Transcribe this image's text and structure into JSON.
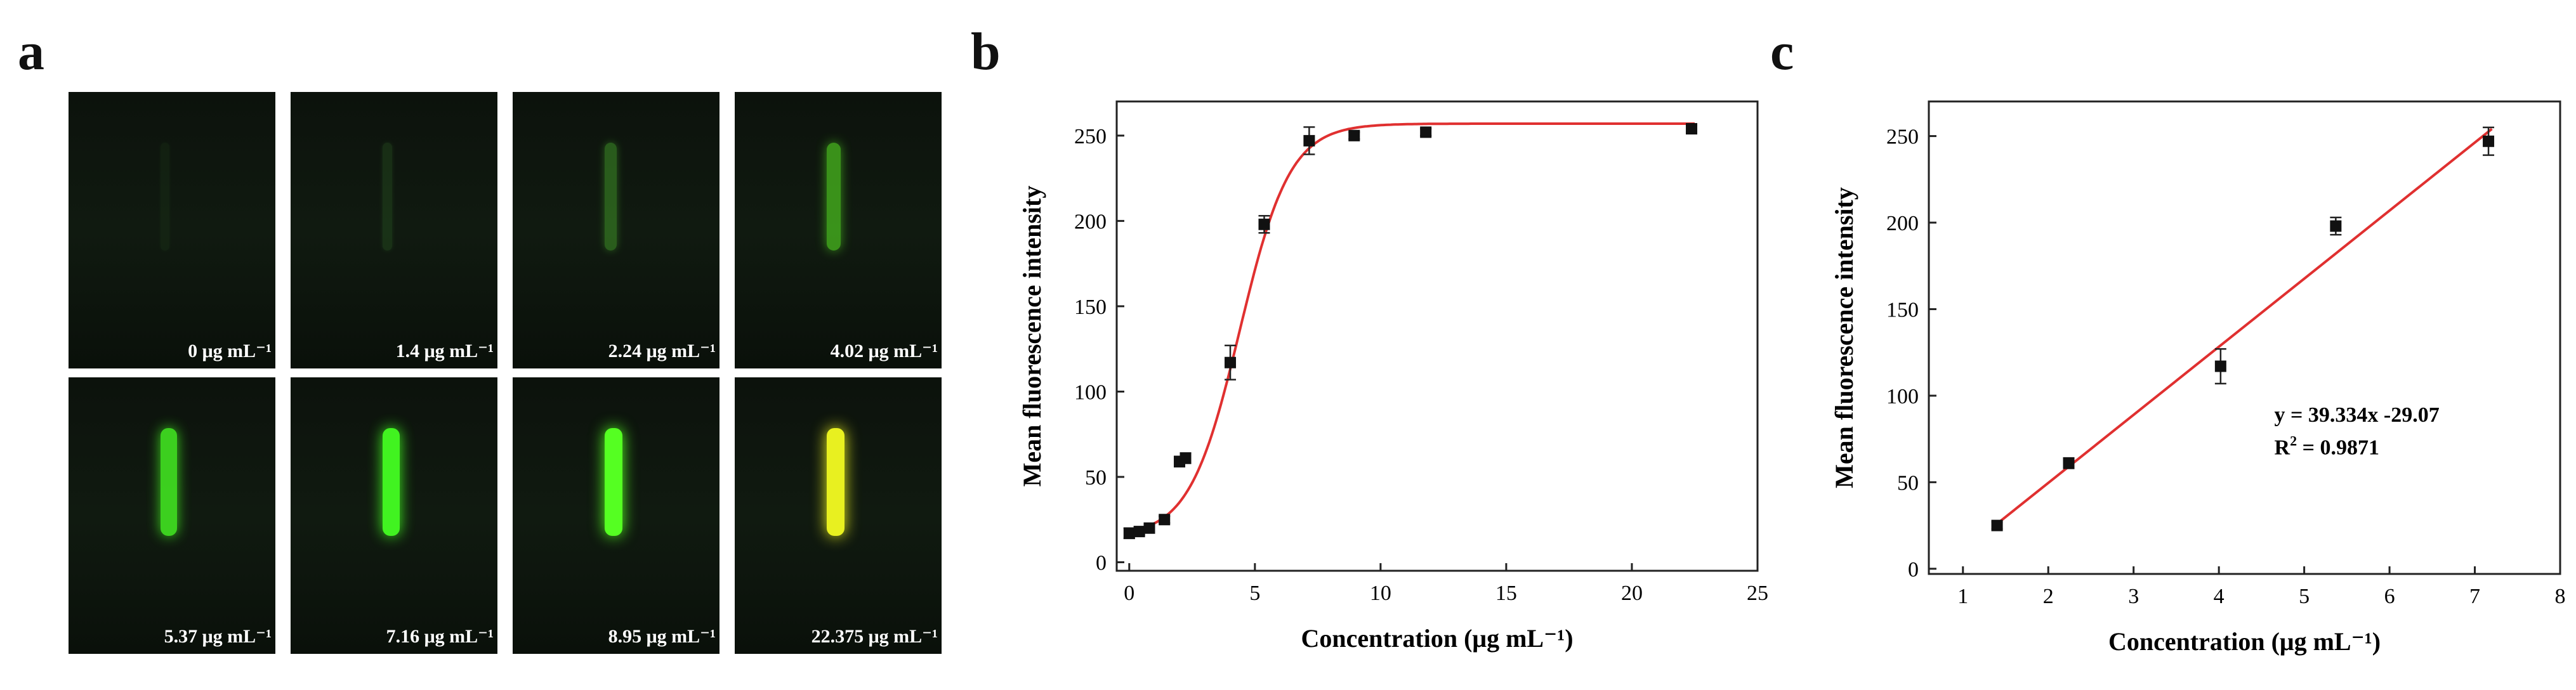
{
  "panels": {
    "a_label": "a",
    "b_label": "b",
    "c_label": "c"
  },
  "images": [
    {
      "label": "0 μg mL⁻¹",
      "color": "#5bd04a",
      "intensity": 0.0
    },
    {
      "label": "1.4 μg mL⁻¹",
      "color": "#5bd04a",
      "intensity": 0.08
    },
    {
      "label": "2.24 μg mL⁻¹",
      "color": "#55cc33",
      "intensity": 0.35
    },
    {
      "label": "4.02 μg mL⁻¹",
      "color": "#55dd22",
      "intensity": 0.6
    },
    {
      "label": "5.37 μg mL⁻¹",
      "color": "#44ee22",
      "intensity": 0.85
    },
    {
      "label": "7.16 μg mL⁻¹",
      "color": "#44ff22",
      "intensity": 0.95
    },
    {
      "label": "8.95 μg mL⁻¹",
      "color": "#55ff22",
      "intensity": 1.0
    },
    {
      "label": "22.375 μg mL⁻¹",
      "color": "#e8f020",
      "intensity": 1.0
    }
  ],
  "chart_data": [
    {
      "id": "b",
      "type": "scatter",
      "xlabel": "Concentration (μg mL⁻¹)",
      "ylabel": "Mean fluorescence intensity",
      "xlim": [
        -0.5,
        25
      ],
      "ylim": [
        -5,
        270
      ],
      "xticks": [
        0,
        5,
        10,
        15,
        20,
        25
      ],
      "yticks": [
        0,
        50,
        100,
        150,
        200,
        250
      ],
      "grid": false,
      "series": [
        {
          "name": "data",
          "x": [
            0,
            0.4,
            0.8,
            1.4,
            2.0,
            2.24,
            4.02,
            5.37,
            7.16,
            8.95,
            11.8,
            22.375
          ],
          "y": [
            17,
            18,
            20,
            25,
            59,
            61,
            117,
            198,
            247,
            250,
            252,
            254
          ],
          "err": [
            3,
            2,
            2,
            2,
            3,
            3,
            10,
            5,
            8,
            2,
            2,
            2
          ]
        }
      ],
      "fit": {
        "type": "sigmoid",
        "color": "#e03030",
        "bottom": 15,
        "top": 257,
        "x0": 4.4,
        "dx": 1.0
      }
    },
    {
      "id": "c",
      "type": "scatter",
      "xlabel": "Concentration (μg mL⁻¹)",
      "ylabel": "Mean fluorescence intensity",
      "xlim": [
        0.6,
        8
      ],
      "ylim": [
        -3,
        270
      ],
      "xticks": [
        1,
        2,
        3,
        4,
        5,
        6,
        7,
        8
      ],
      "yticks": [
        0,
        50,
        100,
        150,
        200,
        250
      ],
      "grid": false,
      "series": [
        {
          "name": "data",
          "x": [
            1.4,
            2.24,
            4.02,
            5.37,
            7.16
          ],
          "y": [
            25,
            61,
            117,
            198,
            247
          ],
          "err": [
            2,
            3,
            10,
            5,
            8
          ]
        }
      ],
      "fit": {
        "type": "linear",
        "color": "#e03030",
        "slope": 39.334,
        "intercept": -29.07
      },
      "annotation": {
        "equation": "y = 39.334x -29.07",
        "r2_prefix": "R",
        "r2_exp": "2",
        "r2_value": " = 0.9871"
      }
    }
  ]
}
